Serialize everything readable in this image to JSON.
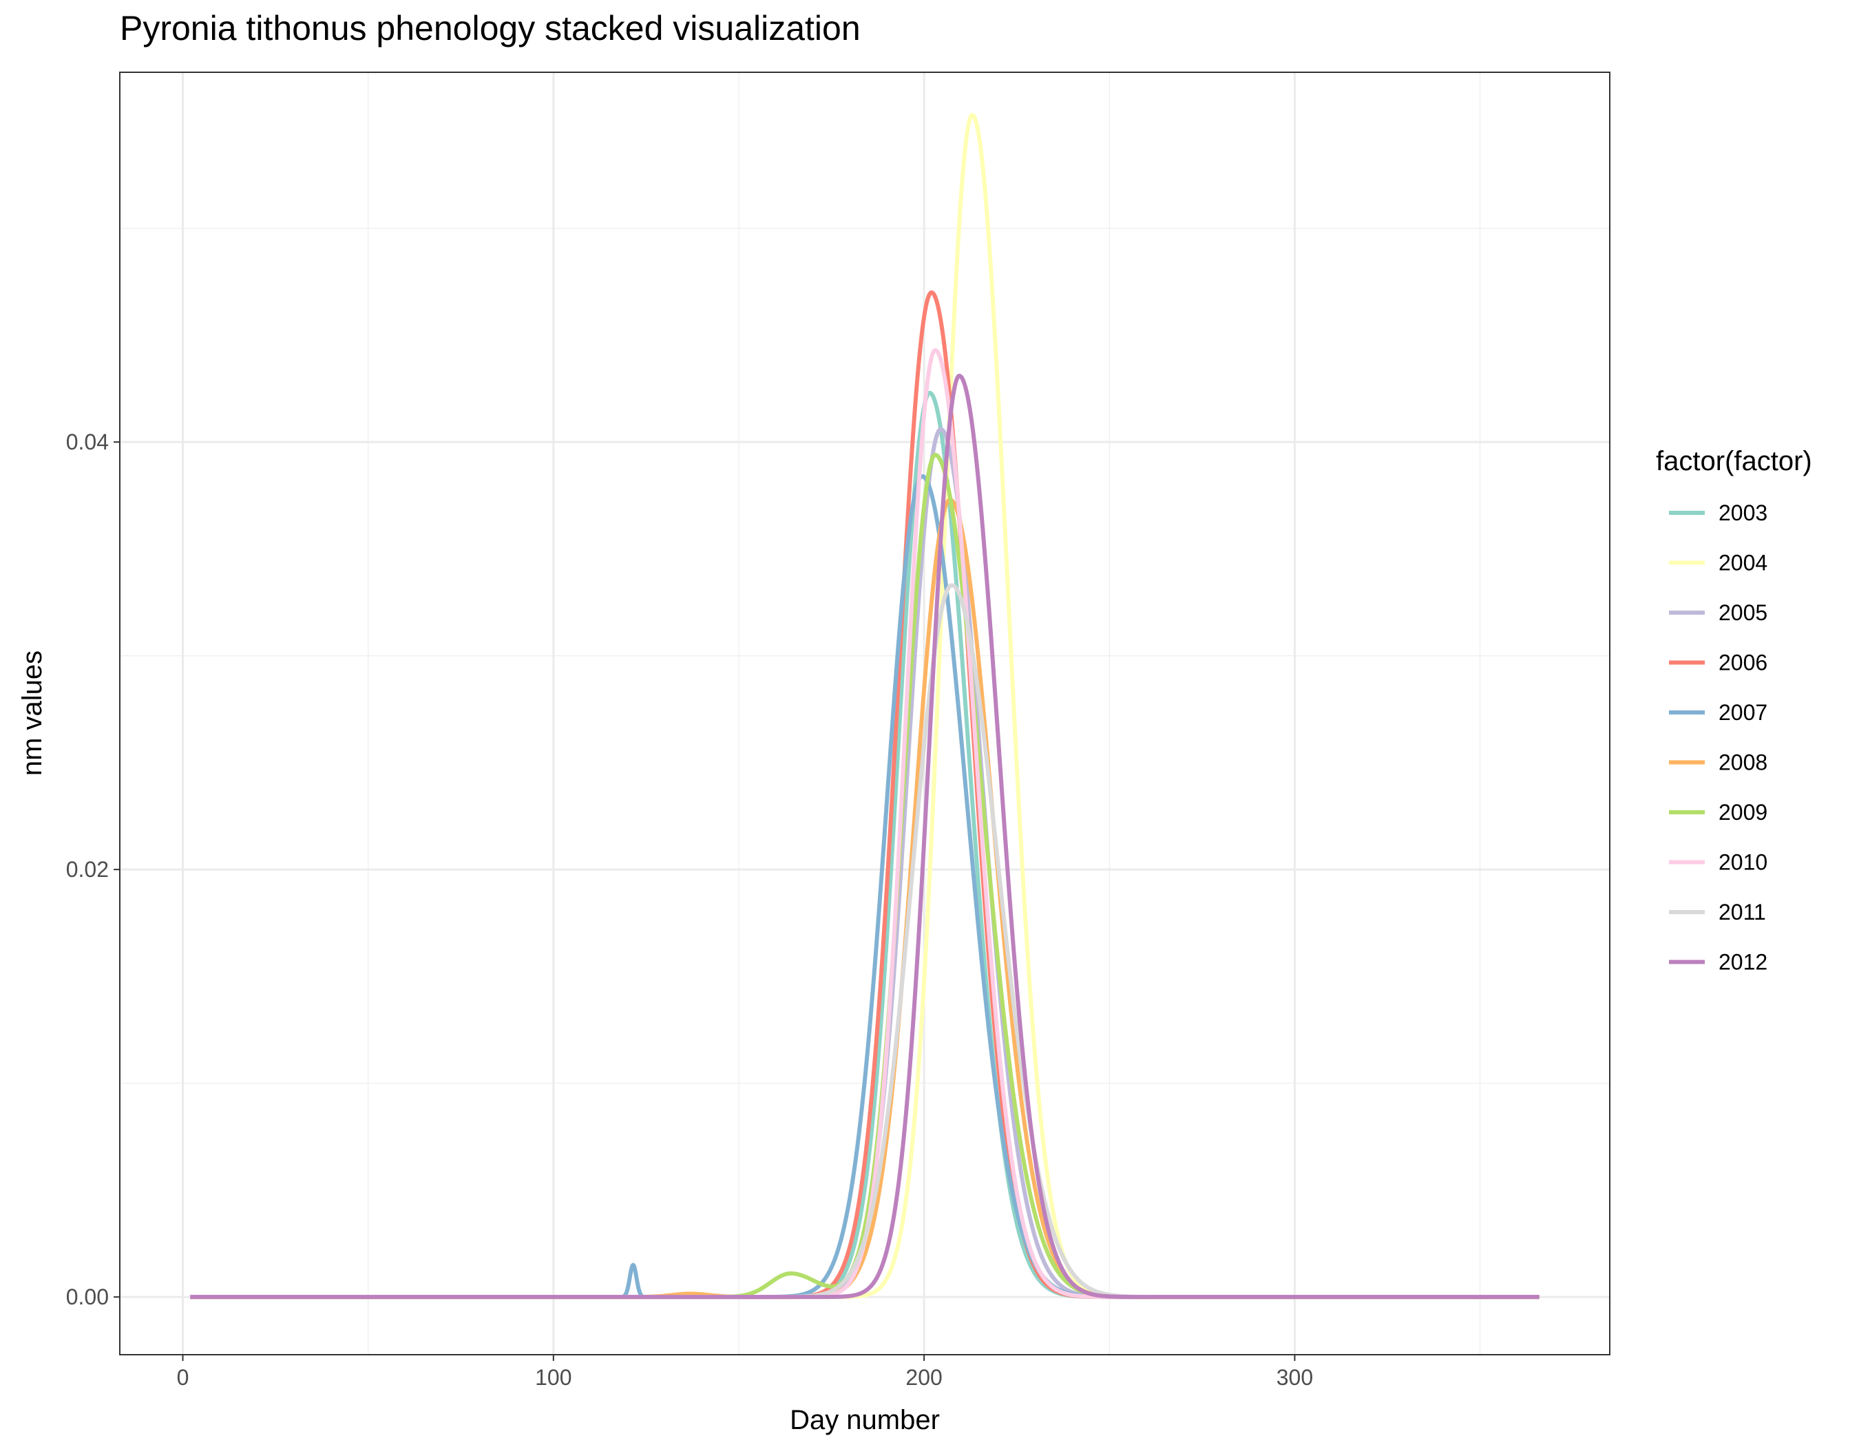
{
  "chart_data": {
    "type": "line",
    "title": "Pyronia tithonus phenology stacked visualization",
    "xlabel": "Day number",
    "ylabel": "nm values",
    "xlim": [
      -17,
      385
    ],
    "ylim": [
      -0.0027,
      0.0573
    ],
    "x_ticks": [
      0,
      100,
      200,
      300
    ],
    "x_tick_labels": [
      "0",
      "100",
      "200",
      "300"
    ],
    "y_ticks": [
      0.0,
      0.02,
      0.04
    ],
    "y_tick_labels": [
      "0.00",
      "0.02",
      "0.04"
    ],
    "x_minor_gridlines": [
      50,
      150,
      250,
      350
    ],
    "y_minor_gridlines": [
      0.01,
      0.03,
      0.05
    ],
    "grid": true,
    "x_range_of_lines": [
      2,
      366
    ],
    "legend": {
      "title": "factor(factor)",
      "position": "right",
      "entries": [
        "2003",
        "2004",
        "2005",
        "2006",
        "2007",
        "2008",
        "2009",
        "2010",
        "2011",
        "2012"
      ]
    },
    "series": [
      {
        "name": "2003",
        "color": "#8DD3C7",
        "components": [
          [
            201.5,
            0.0423,
            8.5,
            10.5
          ]
        ]
      },
      {
        "name": "2004",
        "color": "#FFFFB3",
        "components": [
          [
            213,
            0.0553,
            8.0,
            9.5
          ]
        ]
      },
      {
        "name": "2005",
        "color": "#BEBADA",
        "components": [
          [
            204.5,
            0.0406,
            9.0,
            11.0
          ]
        ]
      },
      {
        "name": "2006",
        "color": "#FB8072",
        "components": [
          [
            202,
            0.047,
            9.0,
            10.5
          ]
        ]
      },
      {
        "name": "2007",
        "color": "#80B1D3",
        "components": [
          [
            199.5,
            0.0384,
            9.5,
            12.0
          ],
          [
            121.5,
            0.0015,
            0.9,
            0.9
          ]
        ]
      },
      {
        "name": "2008",
        "color": "#FDB462",
        "components": [
          [
            207,
            0.0373,
            9.5,
            11.5
          ],
          [
            137,
            0.00015,
            5.0,
            5.0
          ]
        ]
      },
      {
        "name": "2009",
        "color": "#B3DE69",
        "components": [
          [
            203,
            0.0394,
            8.5,
            12.5
          ],
          [
            164,
            0.0011,
            5.5,
            7.0
          ]
        ]
      },
      {
        "name": "2010",
        "color": "#FCCDE5",
        "components": [
          [
            203,
            0.0443,
            8.0,
            10.5
          ]
        ]
      },
      {
        "name": "2011",
        "color": "#D9D9D9",
        "components": [
          [
            207.5,
            0.0333,
            10.5,
            12.5
          ]
        ]
      },
      {
        "name": "2012",
        "color": "#BC80BD",
        "components": [
          [
            209.5,
            0.0431,
            8.0,
            10.5
          ]
        ]
      }
    ]
  }
}
